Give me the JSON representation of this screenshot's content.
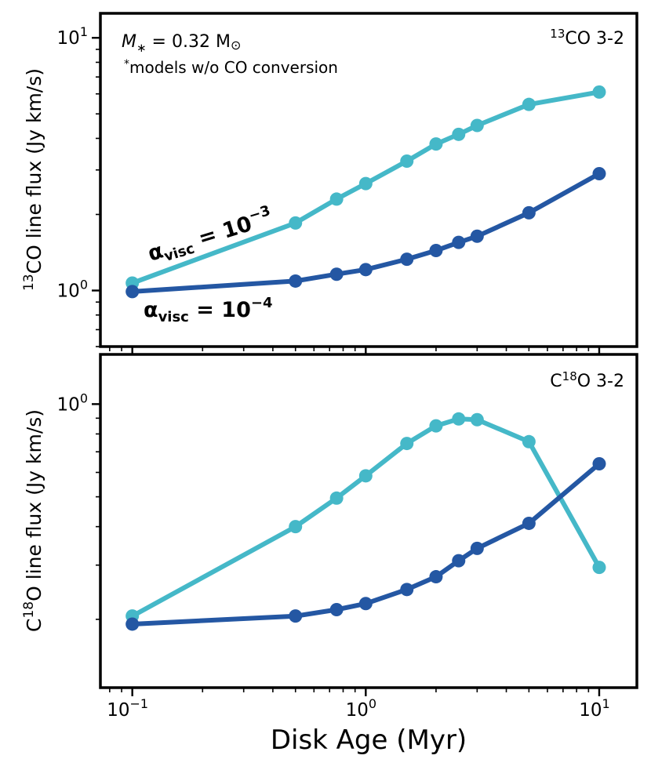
{
  "colors": {
    "low_visc": "#2457a3",
    "high_visc": "#45b8c8",
    "axis": "#000000"
  },
  "chart_data": [
    {
      "type": "line",
      "panel": "top",
      "title": "",
      "corner_label": {
        "sup": "13",
        "text": "CO 3-2"
      },
      "ylabel": {
        "sup": "13",
        "text": "CO line flux (Jy km/s)"
      },
      "xlabel": "",
      "xscale": "log",
      "yscale": "log",
      "xlim": [
        0.073,
        14.5
      ],
      "ylim": [
        0.6,
        12.5
      ],
      "yticks": [
        {
          "value": 1,
          "base": "10",
          "exp": "0"
        },
        {
          "value": 10,
          "base": "10",
          "exp": "1"
        }
      ],
      "annotation": {
        "mstar_symbol": "M",
        "mstar_sub": "∗",
        "mstar_value": " = 0.32 M",
        "mstar_unit": "⊙",
        "note_star": "*",
        "note": "models w/o CO conversion"
      },
      "series": [
        {
          "name": "alpha_visc = 10^-3",
          "label_main": "α",
          "label_sub": "visc",
          "label_eq": " = 10",
          "label_exp": "−3",
          "color_key": "high_visc",
          "x": [
            0.1,
            0.5,
            0.75,
            1.0,
            1.5,
            2.0,
            2.5,
            3.0,
            5.0,
            10.0
          ],
          "y": [
            1.07,
            1.85,
            2.3,
            2.65,
            3.25,
            3.8,
            4.15,
            4.5,
            5.45,
            6.1
          ]
        },
        {
          "name": "alpha_visc = 10^-4",
          "label_main": "α",
          "label_sub": "visc",
          "label_eq": " = 10",
          "label_exp": "−4",
          "color_key": "low_visc",
          "x": [
            0.1,
            0.5,
            0.75,
            1.0,
            1.5,
            2.0,
            2.5,
            3.0,
            5.0,
            10.0
          ],
          "y": [
            0.99,
            1.09,
            1.16,
            1.21,
            1.33,
            1.44,
            1.55,
            1.64,
            2.03,
            2.9
          ]
        }
      ]
    },
    {
      "type": "line",
      "panel": "bottom",
      "title": "",
      "corner_label": {
        "pre": "C",
        "sup": "18",
        "text": "O 3-2"
      },
      "ylabel": {
        "pre": "C",
        "sup": "18",
        "text": "O line flux (Jy km/s)"
      },
      "xlabel": "Disk Age (Myr)",
      "xscale": "log",
      "yscale": "log",
      "xlim": [
        0.073,
        14.5
      ],
      "ylim": [
        0.12,
        1.45
      ],
      "yticks": [
        {
          "value": 1,
          "base": "10",
          "exp": "0"
        }
      ],
      "xticks": [
        {
          "value": 0.1,
          "base": "10",
          "exp": "−1"
        },
        {
          "value": 1,
          "base": "10",
          "exp": "0"
        },
        {
          "value": 10,
          "base": "10",
          "exp": "1"
        }
      ],
      "series": [
        {
          "name": "alpha_visc = 10^-3",
          "color_key": "high_visc",
          "x": [
            0.1,
            0.5,
            0.75,
            1.0,
            1.5,
            2.0,
            2.5,
            3.0,
            5.0,
            10.0
          ],
          "y": [
            0.205,
            0.4,
            0.495,
            0.585,
            0.745,
            0.85,
            0.895,
            0.89,
            0.755,
            0.295
          ]
        },
        {
          "name": "alpha_visc = 10^-4",
          "color_key": "low_visc",
          "x": [
            0.1,
            0.5,
            0.75,
            1.0,
            1.5,
            2.0,
            2.5,
            3.0,
            5.0,
            10.0
          ],
          "y": [
            0.193,
            0.205,
            0.215,
            0.225,
            0.25,
            0.275,
            0.31,
            0.34,
            0.41,
            0.64
          ]
        }
      ]
    }
  ]
}
